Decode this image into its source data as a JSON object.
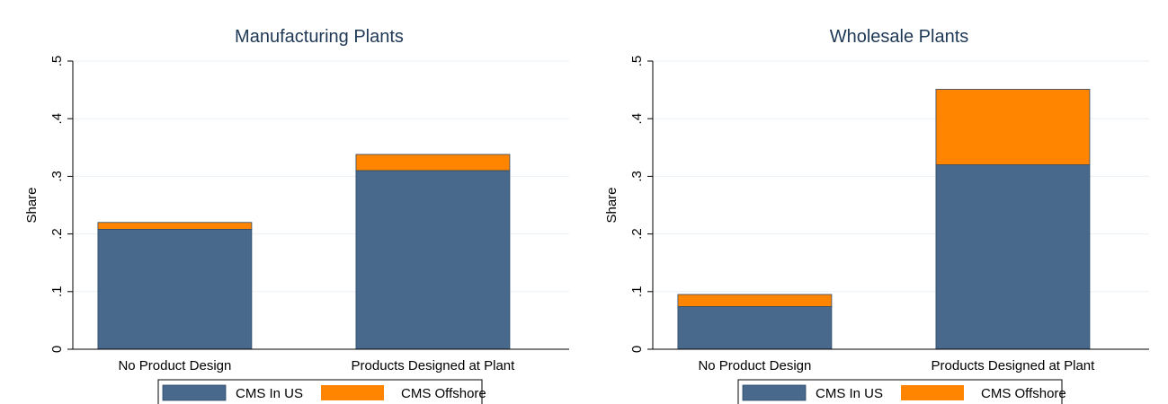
{
  "colors": {
    "cms_in_us": "#48698b",
    "cms_offshore": "#ff8500",
    "bar_stroke": "#2c4a68",
    "grid": "#eaf0f5",
    "axis": "#000000",
    "title": "#1e3856"
  },
  "chart_data": [
    {
      "type": "bar",
      "stacked": true,
      "title": "Manufacturing Plants",
      "xlabel": "",
      "ylabel": "Share",
      "ylim": [
        0,
        0.5
      ],
      "yticks": [
        0,
        0.1,
        0.2,
        0.3,
        0.4,
        0.5
      ],
      "ytick_labels": [
        "0",
        ".1",
        ".2",
        ".3",
        ".4",
        ".5"
      ],
      "grid": true,
      "legend_position": "bottom",
      "categories": [
        "No Product Design",
        "Products Designed at Plant"
      ],
      "series": [
        {
          "name": "CMS In US",
          "values": [
            0.208,
            0.31
          ]
        },
        {
          "name": "CMS Offshore",
          "values": [
            0.012,
            0.028
          ]
        }
      ]
    },
    {
      "type": "bar",
      "stacked": true,
      "title": "Wholesale Plants",
      "xlabel": "",
      "ylabel": "Share",
      "ylim": [
        0,
        0.5
      ],
      "yticks": [
        0,
        0.1,
        0.2,
        0.3,
        0.4,
        0.5
      ],
      "ytick_labels": [
        "0",
        ".1",
        ".2",
        ".3",
        ".4",
        ".5"
      ],
      "grid": true,
      "legend_position": "bottom",
      "categories": [
        "No Product Design",
        "Products Designed at Plant"
      ],
      "series": [
        {
          "name": "CMS In US",
          "values": [
            0.074,
            0.32
          ]
        },
        {
          "name": "CMS Offshore",
          "values": [
            0.021,
            0.131
          ]
        }
      ]
    }
  ]
}
